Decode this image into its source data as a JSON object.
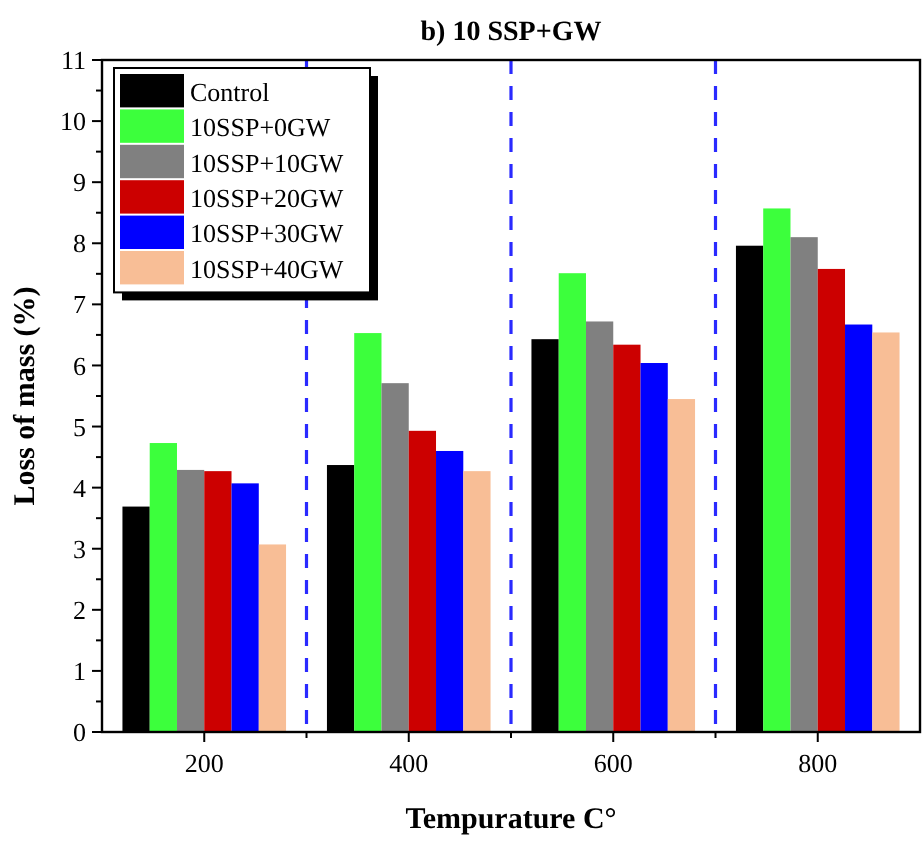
{
  "chart_data": {
    "type": "bar",
    "title": "b) 10 SSP+GW",
    "xlabel": "Tempurature C°",
    "ylabel": "Loss of mass (%)",
    "x": [
      200,
      400,
      600,
      800
    ],
    "xlim": [
      100,
      900
    ],
    "xticks": [
      200,
      {
        "value": 300,
        "label": null
      },
      400,
      {
        "value": 500,
        "label": null
      },
      600,
      {
        "value": 700,
        "label": null
      },
      800
    ],
    "ylim": [
      0,
      11
    ],
    "yticks": [
      0,
      {
        "value": 0.5,
        "label": null
      },
      1,
      {
        "value": 1.5,
        "label": null
      },
      2,
      {
        "value": 2.5,
        "label": null
      },
      3,
      {
        "value": 3.5,
        "label": null
      },
      4,
      {
        "value": 4.5,
        "label": null
      },
      5,
      {
        "value": 5.5,
        "label": null
      },
      6,
      {
        "value": 6.5,
        "label": null
      },
      7,
      {
        "value": 7.5,
        "label": null
      },
      8,
      {
        "value": 8.5,
        "label": null
      },
      9,
      {
        "value": 9.5,
        "label": null
      },
      10,
      {
        "value": 10.5,
        "label": null
      },
      11
    ],
    "series": [
      {
        "name": "Control",
        "color": "#000000",
        "values": [
          3.69,
          4.37,
          6.43,
          7.96
        ]
      },
      {
        "name": "10SSP+0GW",
        "color": "#3cff3c",
        "values": [
          4.73,
          6.53,
          7.51,
          8.57
        ]
      },
      {
        "name": "10SSP+10GW",
        "color": "#808080",
        "values": [
          4.29,
          5.71,
          6.72,
          8.1
        ]
      },
      {
        "name": "10SSP+20GW",
        "color": "#cc0000",
        "values": [
          4.27,
          4.93,
          6.34,
          7.58
        ]
      },
      {
        "name": "10SSP+30GW",
        "color": "#0000ff",
        "values": [
          4.07,
          4.6,
          6.04,
          6.67
        ]
      },
      {
        "name": "10SSP+40GW",
        "color": "#f8be96",
        "values": [
          3.07,
          4.27,
          5.45,
          6.54
        ]
      }
    ],
    "ref_lines": [
      {
        "axis": "x",
        "value": 300,
        "color": "#2a2aff",
        "line_style": "dashed"
      },
      {
        "axis": "x",
        "value": 500,
        "color": "#2a2aff",
        "line_style": "dashed"
      },
      {
        "axis": "x",
        "value": 700,
        "color": "#2a2aff",
        "line_style": "dashed"
      }
    ],
    "grid": false,
    "legend": "top left"
  }
}
